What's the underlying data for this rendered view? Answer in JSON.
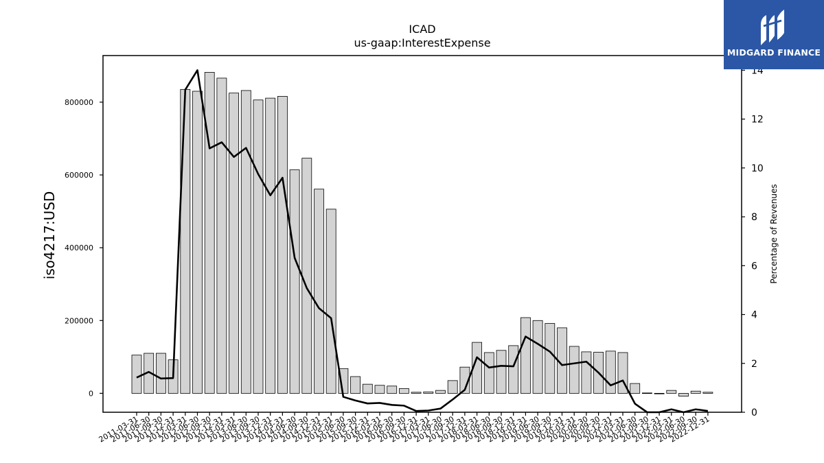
{
  "chart_data": {
    "type": "bar",
    "title": "ICAD",
    "subtitle": "us-gaap:InterestExpense",
    "ylabel": "iso4217:USD",
    "y2label": "Percentage of Revenues",
    "ylim": [
      -52000,
      928000
    ],
    "y2lim": [
      0,
      14.6
    ],
    "yticks": [
      0,
      200000,
      400000,
      600000,
      800000
    ],
    "y2ticks": [
      0,
      2,
      4,
      6,
      8,
      10,
      12,
      14
    ],
    "categories": [
      "2011-03-31",
      "2011-06-30",
      "2011-09-30",
      "2011-12-31",
      "2012-03-31",
      "2012-06-30",
      "2012-09-30",
      "2012-12-31",
      "2013-03-31",
      "2013-06-30",
      "2013-09-30",
      "2013-12-31",
      "2014-03-31",
      "2014-06-30",
      "2014-09-30",
      "2014-12-31",
      "2015-03-31",
      "2015-06-30",
      "2015-09-30",
      "2015-12-31",
      "2016-03-31",
      "2016-06-30",
      "2016-09-30",
      "2016-12-31",
      "2017-03-31",
      "2017-06-30",
      "2017-09-30",
      "2017-12-31",
      "2018-03-31",
      "2018-06-30",
      "2018-09-30",
      "2018-12-31",
      "2019-03-31",
      "2019-06-30",
      "2019-09-30",
      "2019-12-31",
      "2020-03-31",
      "2020-06-30",
      "2020-09-30",
      "2020-12-31",
      "2021-03-31",
      "2021-06-30",
      "2021-09-30",
      "2021-12-31",
      "2022-03-31",
      "2022-06-30",
      "2022-09-30",
      "2022-12-31"
    ],
    "series": [
      {
        "values": [
          105000,
          110000,
          110000,
          92000,
          835000,
          830000,
          882000,
          866000,
          825000,
          832000,
          806000,
          811000,
          816000,
          614000,
          646000,
          561000,
          506000,
          68000,
          46000,
          25000,
          22000,
          20000,
          13000,
          3000,
          4000,
          8000,
          35000,
          72000,
          140000,
          112000,
          118000,
          131000,
          208000,
          200000,
          192000,
          180000,
          129000,
          114000,
          113000,
          116000,
          112000,
          27000,
          1000,
          -1000,
          8000,
          -8000,
          6000,
          3000
        ]
      },
      {
        "axis": "right",
        "values": [
          1.42,
          1.65,
          1.38,
          1.4,
          13.2,
          14.0,
          10.8,
          11.05,
          10.45,
          10.82,
          9.75,
          8.88,
          9.6,
          6.32,
          5.08,
          4.26,
          3.85,
          0.63,
          0.48,
          0.36,
          0.38,
          0.3,
          0.27,
          0.05,
          0.07,
          0.15,
          0.52,
          0.92,
          2.25,
          1.83,
          1.9,
          1.88,
          3.1,
          2.8,
          2.48,
          1.93,
          2.0,
          2.07,
          1.62,
          1.1,
          1.3,
          0.35,
          0.0,
          0.0,
          0.12,
          -0.1,
          0.12,
          0.05
        ]
      }
    ],
    "colors": {
      "bar_fill": "#d3d3d3",
      "bar_edge": "#000000",
      "line": "#000000"
    }
  },
  "logo": {
    "text": "MIDGARD FINANCE",
    "background": "#2b57a6"
  }
}
